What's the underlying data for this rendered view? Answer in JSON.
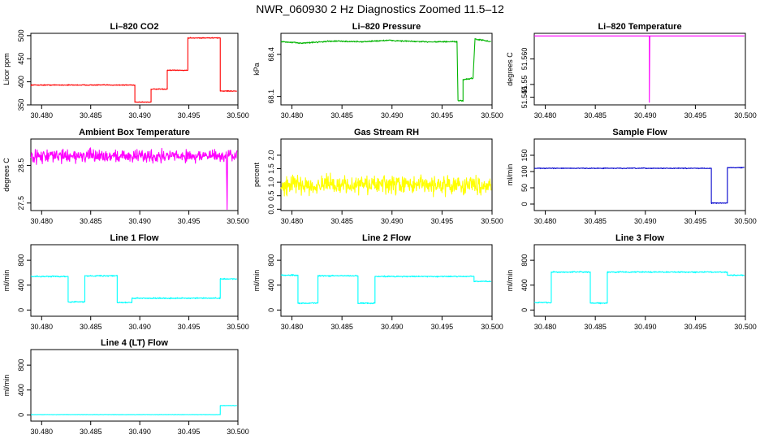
{
  "figure": {
    "title": "NWR_060930  2 Hz Diagnostics Zoomed 11.5–12"
  },
  "chart_data": [
    {
      "name": "li820-co2",
      "type": "line",
      "title": "Li–820 CO2",
      "ylabel": "Licor ppm",
      "color": "#ff0000",
      "xlim": [
        30.4789,
        30.5
      ],
      "ylim": [
        350,
        505
      ],
      "xticks": [
        30.48,
        30.485,
        30.49,
        30.495,
        30.5
      ],
      "xtick_labels": [
        "30.480",
        "30.485",
        "30.490",
        "30.495",
        "30.500"
      ],
      "yticks": [
        350,
        400,
        450,
        500
      ],
      "ytick_labels": [
        "350",
        "400",
        "450",
        "500"
      ],
      "noise": 0.8,
      "points": [
        [
          30.4789,
          393
        ],
        [
          30.4895,
          393
        ],
        [
          30.4895,
          356
        ],
        [
          30.49115,
          356
        ],
        [
          30.49115,
          384
        ],
        [
          30.4928,
          384
        ],
        [
          30.4928,
          425
        ],
        [
          30.4949,
          425
        ],
        [
          30.4949,
          495
        ],
        [
          30.4982,
          495
        ],
        [
          30.4982,
          380
        ],
        [
          30.4999,
          380
        ]
      ]
    },
    {
      "name": "li820-pressure",
      "type": "line",
      "title": "Li–820 Pressure",
      "ylabel": "kPa",
      "color": "#00b400",
      "xlim": [
        30.4789,
        30.5
      ],
      "ylim": [
        68.04,
        68.55
      ],
      "xticks": [
        30.48,
        30.485,
        30.49,
        30.495,
        30.5
      ],
      "xtick_labels": [
        "30.480",
        "30.485",
        "30.490",
        "30.495",
        "30.500"
      ],
      "yticks": [
        68.1,
        68.4
      ],
      "ytick_labels": [
        "68.1",
        "68.4"
      ],
      "noise": 0.004,
      "points": [
        [
          30.4789,
          68.49
        ],
        [
          30.481,
          68.48
        ],
        [
          30.484,
          68.495
        ],
        [
          30.487,
          68.49
        ],
        [
          30.4895,
          68.5
        ],
        [
          30.493,
          68.49
        ],
        [
          30.4965,
          68.49
        ],
        [
          30.4966,
          68.07
        ],
        [
          30.4971,
          68.07
        ],
        [
          30.4971,
          68.22
        ],
        [
          30.4981,
          68.23
        ],
        [
          30.4983,
          68.51
        ],
        [
          30.4999,
          68.49
        ]
      ]
    },
    {
      "name": "li820-temperature",
      "type": "line",
      "title": "Li–820 Temperature",
      "ylabel": "degrees C",
      "color": "#ff00ff",
      "xlim": [
        30.4789,
        30.5
      ],
      "ylim": [
        51.542,
        51.57
      ],
      "xticks": [
        30.48,
        30.485,
        30.49,
        30.495,
        30.5
      ],
      "xtick_labels": [
        "30.480",
        "30.485",
        "30.490",
        "30.495",
        "30.500"
      ],
      "yticks": [
        51.545,
        51.55,
        51.56
      ],
      "ytick_labels": [
        "51.545",
        "51.55",
        "51.560"
      ],
      "noise": 0,
      "points": [
        [
          30.4789,
          51.569
        ],
        [
          30.4904,
          51.569
        ],
        [
          30.4904,
          51.543
        ],
        [
          30.49045,
          51.569
        ],
        [
          30.4999,
          51.569
        ]
      ]
    },
    {
      "name": "ambient-box-temperature",
      "type": "line",
      "title": "Ambient Box Temperature",
      "ylabel": "degrees C",
      "color": "#ff00ff",
      "xlim": [
        30.4789,
        30.5
      ],
      "ylim": [
        27.3,
        29.2
      ],
      "xticks": [
        30.48,
        30.485,
        30.49,
        30.495,
        30.5
      ],
      "xtick_labels": [
        "30.480",
        "30.485",
        "30.490",
        "30.495",
        "30.500"
      ],
      "yticks": [
        27.5,
        28.5
      ],
      "ytick_labels": [
        "27.5",
        "28.5"
      ],
      "noise": 0.14,
      "points": [
        [
          30.4789,
          28.75
        ],
        [
          30.4988,
          28.75
        ],
        [
          30.4989,
          27.45
        ],
        [
          30.49895,
          28.75
        ],
        [
          30.4999,
          28.75
        ]
      ]
    },
    {
      "name": "gas-stream-rh",
      "type": "line",
      "title": "Gas Stream RH",
      "ylabel": "percent",
      "color": "#ffff00",
      "xlim": [
        30.4789,
        30.5
      ],
      "ylim": [
        -0.05,
        2.6
      ],
      "xticks": [
        30.48,
        30.485,
        30.49,
        30.495,
        30.5
      ],
      "xtick_labels": [
        "30.480",
        "30.485",
        "30.490",
        "30.495",
        "30.500"
      ],
      "yticks": [
        0,
        0.5,
        1,
        1.5,
        2
      ],
      "ytick_labels": [
        "0.0",
        "0.5",
        "1.0",
        "1.5",
        "2.0"
      ],
      "noise": 0.28,
      "points": [
        [
          30.4789,
          0.9
        ],
        [
          30.4999,
          0.9
        ]
      ]
    },
    {
      "name": "sample-flow",
      "type": "line",
      "title": "Sample Flow",
      "ylabel": "ml/min",
      "color": "#0000cc",
      "xlim": [
        30.4789,
        30.5
      ],
      "ylim": [
        -20,
        200
      ],
      "xticks": [
        30.48,
        30.485,
        30.49,
        30.495,
        30.5
      ],
      "xtick_labels": [
        "30.480",
        "30.485",
        "30.490",
        "30.495",
        "30.500"
      ],
      "yticks": [
        0,
        50,
        100,
        150
      ],
      "ytick_labels": [
        "0",
        "50",
        "100",
        "150"
      ],
      "noise": 1,
      "points": [
        [
          30.4789,
          110
        ],
        [
          30.4966,
          110
        ],
        [
          30.4966,
          3
        ],
        [
          30.4982,
          3
        ],
        [
          30.4982,
          112
        ],
        [
          30.4999,
          112
        ]
      ]
    },
    {
      "name": "line-1-flow",
      "type": "line",
      "title": "Line 1 Flow",
      "ylabel": "ml/min",
      "color": "#00ffff",
      "xlim": [
        30.4789,
        30.5
      ],
      "ylim": [
        -100,
        1050
      ],
      "xticks": [
        30.48,
        30.485,
        30.49,
        30.495,
        30.5
      ],
      "xtick_labels": [
        "30.480",
        "30.485",
        "30.490",
        "30.495",
        "30.500"
      ],
      "yticks": [
        0,
        400,
        800
      ],
      "ytick_labels": [
        "0",
        "400",
        "800"
      ],
      "noise": 8,
      "points": [
        [
          30.4789,
          540
        ],
        [
          30.4827,
          540
        ],
        [
          30.4827,
          130
        ],
        [
          30.4844,
          130
        ],
        [
          30.4844,
          550
        ],
        [
          30.4877,
          550
        ],
        [
          30.4877,
          120
        ],
        [
          30.4892,
          120
        ],
        [
          30.4892,
          190
        ],
        [
          30.4982,
          190
        ],
        [
          30.4982,
          500
        ],
        [
          30.4999,
          500
        ]
      ]
    },
    {
      "name": "line-2-flow",
      "type": "line",
      "title": "Line 2 Flow",
      "ylabel": "ml/min",
      "color": "#00ffff",
      "xlim": [
        30.4789,
        30.5
      ],
      "ylim": [
        -100,
        1050
      ],
      "xticks": [
        30.48,
        30.485,
        30.49,
        30.495,
        30.5
      ],
      "xtick_labels": [
        "30.480",
        "30.485",
        "30.490",
        "30.495",
        "30.500"
      ],
      "yticks": [
        0,
        400,
        800
      ],
      "ytick_labels": [
        "0",
        "400",
        "800"
      ],
      "noise": 8,
      "points": [
        [
          30.4789,
          560
        ],
        [
          30.4806,
          560
        ],
        [
          30.4806,
          110
        ],
        [
          30.4826,
          110
        ],
        [
          30.4826,
          550
        ],
        [
          30.4866,
          550
        ],
        [
          30.4866,
          110
        ],
        [
          30.4883,
          110
        ],
        [
          30.4883,
          540
        ],
        [
          30.4982,
          540
        ],
        [
          30.4982,
          460
        ],
        [
          30.4999,
          460
        ]
      ]
    },
    {
      "name": "line-3-flow",
      "type": "line",
      "title": "Line 3 Flow",
      "ylabel": "ml/min",
      "color": "#00ffff",
      "xlim": [
        30.4789,
        30.5
      ],
      "ylim": [
        -100,
        1050
      ],
      "xticks": [
        30.48,
        30.485,
        30.49,
        30.495,
        30.5
      ],
      "xtick_labels": [
        "30.480",
        "30.485",
        "30.490",
        "30.495",
        "30.500"
      ],
      "yticks": [
        0,
        400,
        800
      ],
      "ytick_labels": [
        "0",
        "400",
        "800"
      ],
      "noise": 8,
      "points": [
        [
          30.4789,
          120
        ],
        [
          30.4806,
          120
        ],
        [
          30.4806,
          610
        ],
        [
          30.4845,
          610
        ],
        [
          30.4845,
          110
        ],
        [
          30.4862,
          110
        ],
        [
          30.4862,
          610
        ],
        [
          30.4982,
          610
        ],
        [
          30.4982,
          560
        ],
        [
          30.4999,
          560
        ]
      ]
    },
    {
      "name": "line-4-lt-flow",
      "type": "line",
      "title": "Line 4 (LT) Flow",
      "ylabel": "ml/min",
      "color": "#00ffff",
      "xlim": [
        30.4789,
        30.5
      ],
      "ylim": [
        -100,
        1050
      ],
      "xticks": [
        30.48,
        30.485,
        30.49,
        30.495,
        30.5
      ],
      "xtick_labels": [
        "30.480",
        "30.485",
        "30.490",
        "30.495",
        "30.500"
      ],
      "yticks": [
        0,
        400,
        800
      ],
      "ytick_labels": [
        "0",
        "400",
        "800"
      ],
      "noise": 2,
      "points": [
        [
          30.4789,
          5
        ],
        [
          30.4982,
          5
        ],
        [
          30.4982,
          150
        ],
        [
          30.4999,
          150
        ]
      ]
    }
  ]
}
